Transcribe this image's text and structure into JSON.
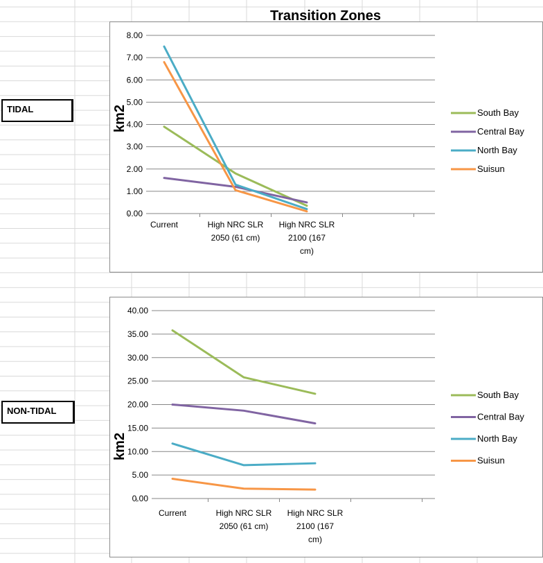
{
  "page": {
    "title": "Transition Zones",
    "labels": {
      "tidal": "TIDAL",
      "nontidal": "NON-TIDAL"
    }
  },
  "colors": {
    "South Bay": "#9bbb59",
    "Central Bay": "#8064a2",
    "North Bay": "#4bacc6",
    "Suisun": "#f79646",
    "gridline": "#868686",
    "frame": "#8c8c8c",
    "sheet_grid": "#d9d9d9"
  },
  "chart_data": [
    {
      "type": "line",
      "title": "",
      "ylabel": "km2",
      "xlabel": "",
      "ylim": [
        0,
        8
      ],
      "ytick_step": 1,
      "ytick_labels": [
        "0.00",
        "1.00",
        "2.00",
        "3.00",
        "4.00",
        "5.00",
        "6.00",
        "7.00",
        "8.00"
      ],
      "categories": [
        "Current",
        "High NRC SLR 2050 (61 cm)",
        "High NRC SLR 2100 (167 cm)"
      ],
      "category_lines": [
        [
          "Current"
        ],
        [
          "High NRC SLR",
          "2050 (61 cm)"
        ],
        [
          "High NRC SLR",
          "2100 (167",
          "cm)"
        ]
      ],
      "legend_position": "right",
      "grid": true,
      "series": [
        {
          "name": "South Bay",
          "values": [
            3.9,
            1.8,
            0.35
          ]
        },
        {
          "name": "Central Bay",
          "values": [
            1.6,
            1.2,
            0.5
          ]
        },
        {
          "name": "North Bay",
          "values": [
            7.5,
            1.3,
            0.2
          ]
        },
        {
          "name": "Suisun",
          "values": [
            6.8,
            1.05,
            0.1
          ]
        }
      ]
    },
    {
      "type": "line",
      "title": "",
      "ylabel": "km2",
      "xlabel": "",
      "ylim": [
        0,
        40
      ],
      "ytick_step": 5,
      "ytick_labels": [
        "0.00",
        "5.00",
        "10.00",
        "15.00",
        "20.00",
        "25.00",
        "30.00",
        "35.00",
        "40.00"
      ],
      "categories": [
        "Current",
        "High NRC SLR 2050 (61 cm)",
        "High NRC SLR 2100 (167 cm)"
      ],
      "category_lines": [
        [
          "Current"
        ],
        [
          "High NRC SLR",
          "2050 (61 cm)"
        ],
        [
          "High NRC SLR",
          "2100 (167",
          "cm)"
        ]
      ],
      "legend_position": "right",
      "grid": true,
      "series": [
        {
          "name": "South Bay",
          "values": [
            35.8,
            25.8,
            22.3
          ]
        },
        {
          "name": "Central Bay",
          "values": [
            20.0,
            18.7,
            16.0
          ]
        },
        {
          "name": "North Bay",
          "values": [
            11.7,
            7.1,
            7.5
          ]
        },
        {
          "name": "Suisun",
          "values": [
            4.2,
            2.1,
            1.9
          ]
        }
      ]
    }
  ]
}
